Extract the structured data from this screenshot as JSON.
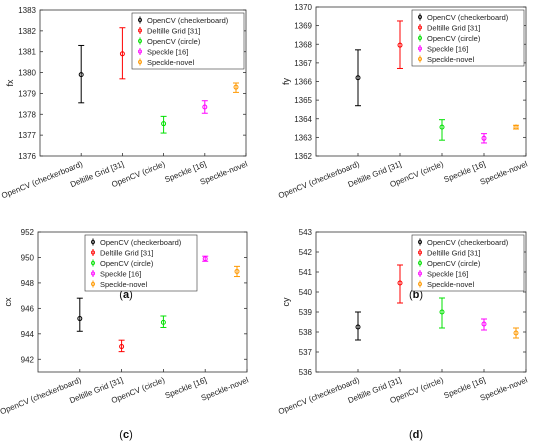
{
  "series_names": [
    "OpenCV (checkerboard)",
    "Deltille Grid [31]",
    "OpenCV (circle)",
    "Speckle [16]",
    "Speckle-novel"
  ],
  "series_colors": [
    "#000000",
    "#ff0000",
    "#00e000",
    "#ff00ff",
    "#ff9900"
  ],
  "chart_data": [
    {
      "type": "scatter",
      "panel_label": "(a)",
      "ylabel": "fx",
      "categories": [
        "OpenCV (checkerboard)",
        "Deltille Grid [31]",
        "OpenCV (circle)",
        "Speckle [16]",
        "Speckle-novel"
      ],
      "ylim": [
        1376,
        1383
      ],
      "yticks": [
        1376,
        1377,
        1378,
        1379,
        1380,
        1381,
        1382,
        1383
      ],
      "grid": false,
      "legend_position": "top-right",
      "series": [
        {
          "name": "OpenCV (checkerboard)",
          "value": 1379.9,
          "low": 1378.55,
          "high": 1381.3
        },
        {
          "name": "Deltille Grid [31]",
          "value": 1380.9,
          "low": 1379.7,
          "high": 1382.15
        },
        {
          "name": "OpenCV (circle)",
          "value": 1377.55,
          "low": 1377.1,
          "high": 1377.9
        },
        {
          "name": "Speckle [16]",
          "value": 1378.35,
          "low": 1378.05,
          "high": 1378.65
        },
        {
          "name": "Speckle-novel",
          "value": 1379.3,
          "low": 1379.05,
          "high": 1379.5
        }
      ]
    },
    {
      "type": "scatter",
      "panel_label": "(b)",
      "ylabel": "fy",
      "categories": [
        "OpenCV (checkerboard)",
        "Deltille Grid [31]",
        "OpenCV (circle)",
        "Speckle [16]",
        "Speckle-novel"
      ],
      "ylim": [
        1362,
        1370
      ],
      "yticks": [
        1362,
        1363,
        1364,
        1365,
        1366,
        1367,
        1368,
        1369,
        1370
      ],
      "grid": false,
      "legend_position": "top-right",
      "series": [
        {
          "name": "OpenCV (checkerboard)",
          "value": 1366.2,
          "low": 1364.7,
          "high": 1367.7
        },
        {
          "name": "Deltille Grid [31]",
          "value": 1367.95,
          "low": 1366.7,
          "high": 1369.25
        },
        {
          "name": "OpenCV (circle)",
          "value": 1363.55,
          "low": 1362.85,
          "high": 1363.95
        },
        {
          "name": "Speckle [16]",
          "value": 1362.95,
          "low": 1362.7,
          "high": 1363.2
        },
        {
          "name": "Speckle-novel",
          "value": 1363.55,
          "low": 1363.45,
          "high": 1363.65
        }
      ]
    },
    {
      "type": "scatter",
      "panel_label": "(c)",
      "ylabel": "cx",
      "categories": [
        "OpenCV (checkerboard)",
        "Deltille Grid [31]",
        "OpenCV (circle)",
        "Speckle [16]",
        "Speckle-novel"
      ],
      "ylim": [
        941,
        952
      ],
      "yticks": [
        942,
        944,
        946,
        948,
        950,
        952
      ],
      "grid": false,
      "legend_position": "top-left",
      "series": [
        {
          "name": "OpenCV (checkerboard)",
          "value": 945.2,
          "low": 944.2,
          "high": 946.8
        },
        {
          "name": "Deltille Grid [31]",
          "value": 943.0,
          "low": 942.6,
          "high": 943.5
        },
        {
          "name": "OpenCV (circle)",
          "value": 944.9,
          "low": 944.5,
          "high": 945.4
        },
        {
          "name": "Speckle [16]",
          "value": 949.9,
          "low": 949.7,
          "high": 950.1
        },
        {
          "name": "Speckle-novel",
          "value": 948.9,
          "low": 948.5,
          "high": 949.3
        }
      ]
    },
    {
      "type": "scatter",
      "panel_label": "(d)",
      "ylabel": "cy",
      "categories": [
        "OpenCV (checkerboard)",
        "Deltille Grid [31]",
        "OpenCV (circle)",
        "Speckle [16]",
        "Speckle-novel"
      ],
      "ylim": [
        536,
        543
      ],
      "yticks": [
        536,
        537,
        538,
        539,
        540,
        541,
        542,
        543
      ],
      "grid": false,
      "legend_position": "top-right",
      "series": [
        {
          "name": "OpenCV (checkerboard)",
          "value": 538.25,
          "low": 537.6,
          "high": 539.0
        },
        {
          "name": "Deltille Grid [31]",
          "value": 540.45,
          "low": 539.45,
          "high": 541.35
        },
        {
          "name": "OpenCV (circle)",
          "value": 539.0,
          "low": 538.2,
          "high": 539.7
        },
        {
          "name": "Speckle [16]",
          "value": 538.4,
          "low": 538.1,
          "high": 538.65
        },
        {
          "name": "Speckle-novel",
          "value": 537.95,
          "low": 537.7,
          "high": 538.2
        }
      ]
    }
  ]
}
